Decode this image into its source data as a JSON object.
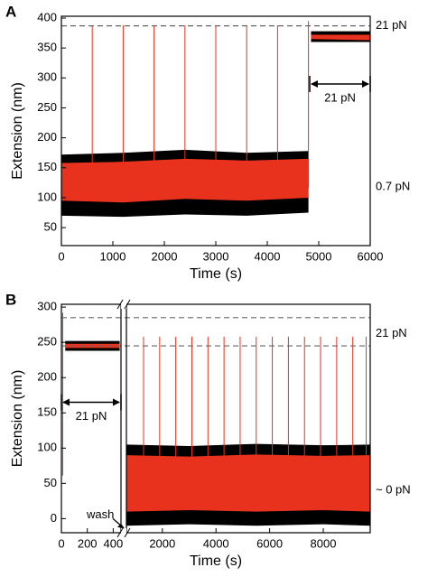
{
  "chart_data": [
    {
      "type": "line",
      "panel_label": "A",
      "x_label": "Time (s)",
      "y_label": "Extension (nm)",
      "ylim": [
        20,
        403
      ],
      "yticks": [
        50,
        100,
        150,
        200,
        250,
        300,
        350,
        400
      ],
      "segments": [
        {
          "xlim": [
            0,
            6000
          ],
          "xticks": [
            0,
            1000,
            2000,
            3000,
            4000,
            5000,
            6000
          ]
        }
      ],
      "bands": [
        {
          "color": "#000000",
          "x": [
            0,
            1200,
            2400,
            3600,
            4800
          ],
          "low": [
            70,
            68,
            72,
            70,
            75
          ],
          "high": [
            172,
            175,
            180,
            175,
            178
          ]
        },
        {
          "color": "#e8321e",
          "x": [
            0,
            1200,
            2400,
            3600,
            4800
          ],
          "low": [
            95,
            92,
            98,
            95,
            100
          ],
          "high": [
            158,
            160,
            165,
            162,
            165
          ]
        },
        {
          "color": "#000000",
          "x": [
            4850,
            6000
          ],
          "low": [
            360,
            360
          ],
          "high": [
            378,
            378
          ]
        },
        {
          "color": "#e8321e",
          "x": [
            4850,
            6000
          ],
          "low": [
            365,
            363
          ],
          "high": [
            372,
            372
          ]
        }
      ],
      "spikes": {
        "color": "#e8321e",
        "x": [
          600,
          1200,
          1800,
          2400,
          3000,
          3600,
          4200,
          4800
        ],
        "values": [
          388,
          388,
          388,
          388,
          388,
          388,
          388,
          395
        ]
      },
      "reference_lines": [
        387
      ],
      "annotations": {
        "arrow": "21 pN",
        "right_top": "21 pN",
        "right_bottom": "0.7 pN"
      }
    },
    {
      "type": "line",
      "panel_label": "B",
      "x_label": "Time (s)",
      "y_label": "Extension (nm)",
      "ylim": [
        -20,
        304
      ],
      "yticks": [
        0,
        50,
        100,
        150,
        200,
        250,
        300
      ],
      "segments": [
        {
          "xlim": [
            0,
            460
          ],
          "xticks": [
            0,
            200,
            400
          ]
        },
        {
          "xlim": [
            660,
            9750
          ],
          "xticks": [
            2000,
            4000,
            6000,
            8000
          ]
        }
      ],
      "bands": [
        {
          "color": "#000000",
          "x": [
            30,
            450
          ],
          "low": [
            238,
            238
          ],
          "high": [
            252,
            252
          ]
        },
        {
          "color": "#e8321e",
          "x": [
            30,
            450
          ],
          "low": [
            242,
            242
          ],
          "high": [
            248,
            248
          ]
        },
        {
          "color": "#000000",
          "x": [
            660,
            3000,
            5500,
            8000,
            9750
          ],
          "low": [
            -10,
            -8,
            -10,
            -8,
            -10
          ],
          "high": [
            105,
            103,
            106,
            104,
            105
          ]
        },
        {
          "color": "#e8321e",
          "x": [
            660,
            3000,
            5500,
            8000,
            9750
          ],
          "low": [
            10,
            12,
            10,
            12,
            10
          ],
          "high": [
            90,
            88,
            91,
            89,
            90
          ]
        }
      ],
      "spikes": {
        "color": "#e8321e",
        "x": [
          10,
          1300,
          1900,
          2500,
          3100,
          3700,
          4300,
          4900,
          5500,
          6100,
          6700,
          7300,
          7900,
          8500,
          9100,
          9600
        ],
        "values": [
          292,
          258,
          258,
          258,
          258,
          258,
          258,
          258,
          258,
          258,
          258,
          258,
          258,
          258,
          258,
          258
        ]
      },
      "reference_lines": [
        285,
        245
      ],
      "annotations": {
        "arrow": "21 pN",
        "right_top": "21 pN",
        "right_bottom": "~ 0 pN",
        "wash": "wash"
      }
    }
  ]
}
